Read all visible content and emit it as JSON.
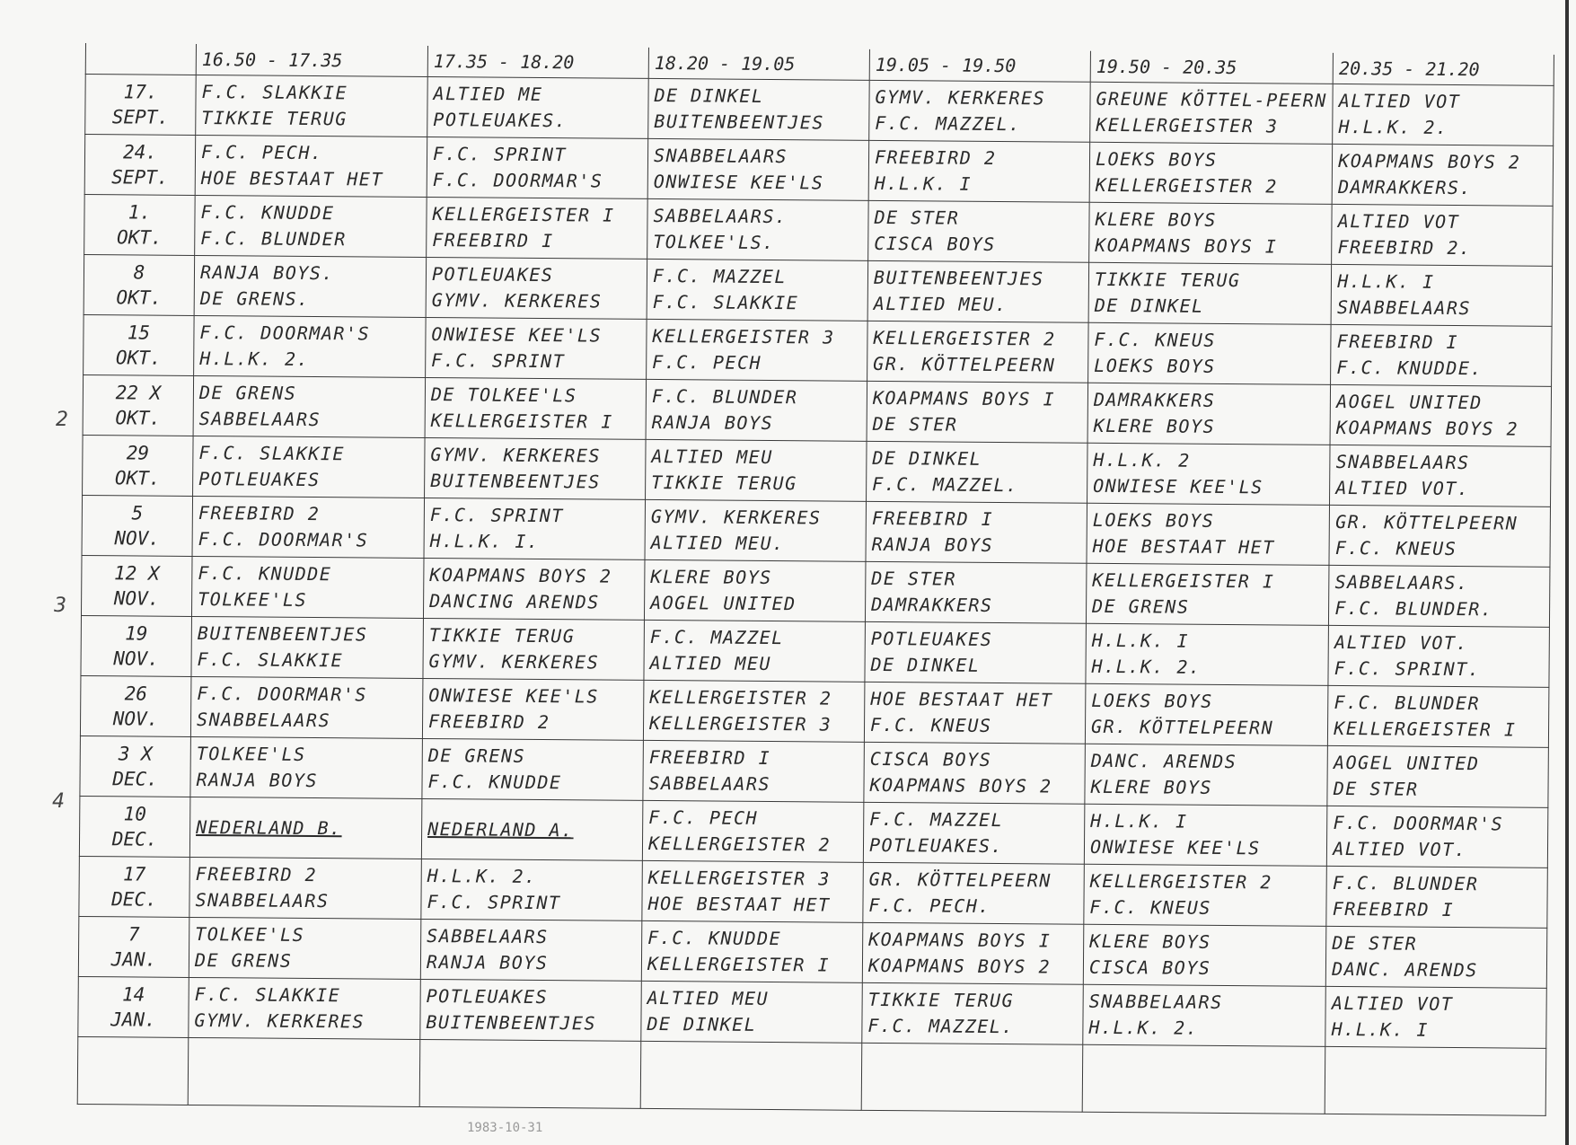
{
  "headers": [
    "",
    "16.50 - 17.35",
    "17.35 - 18.20",
    "18.20 - 19.05",
    "19.05 - 19.50",
    "19.50 - 20.35",
    "20.35 - 21.20"
  ],
  "rows": [
    {
      "date": [
        "17.",
        "SEPT."
      ],
      "cells": [
        [
          "F.C. SLAKKIE",
          "TIKKIE TERUG"
        ],
        [
          "ALTIED ME",
          "POTLEUAKES."
        ],
        [
          "DE DINKEL",
          "BUITENBEENTJES"
        ],
        [
          "GYMV. KERKERES",
          "F.C. MAZZEL."
        ],
        [
          "GREUNE KÖTTEL-PEERN",
          "KELLERGEISTER 3"
        ],
        [
          "ALTIED VOT",
          "H.L.K. 2."
        ]
      ]
    },
    {
      "date": [
        "24.",
        "SEPT."
      ],
      "cells": [
        [
          "F.C. PECH.",
          "HOE BESTAAT HET"
        ],
        [
          "F.C. SPRINT",
          "F.C. DOORMAR'S"
        ],
        [
          "SNABBELAARS",
          "ONWIESE KEE'LS"
        ],
        [
          "FREEBIRD 2",
          "H.L.K. I"
        ],
        [
          "LOEKS BOYS",
          "KELLERGEISTER 2"
        ],
        [
          "KOAPMANS BOYS 2",
          "DAMRAKKERS."
        ]
      ]
    },
    {
      "date": [
        "1.",
        "OKT."
      ],
      "cells": [
        [
          "F.C. KNUDDE",
          "F.C. BLUNDER"
        ],
        [
          "KELLERGEISTER I",
          "FREEBIRD I"
        ],
        [
          "SABBELAARS.",
          "TOLKEE'LS."
        ],
        [
          "DE STER",
          "CISCA BOYS"
        ],
        [
          "KLERE BOYS",
          "KOAPMANS BOYS I"
        ],
        [
          "ALTIED VOT",
          "FREEBIRD 2."
        ]
      ]
    },
    {
      "date": [
        "8",
        "OKT."
      ],
      "cells": [
        [
          "RANJA BOYS.",
          "DE GRENS."
        ],
        [
          "POTLEUAKES",
          "GYMV. KERKERES"
        ],
        [
          "F.C. MAZZEL",
          "F.C. SLAKKIE"
        ],
        [
          "BUITENBEENTJES",
          "ALTIED MEU."
        ],
        [
          "TIKKIE TERUG",
          "DE DINKEL"
        ],
        [
          "H.L.K. I",
          "SNABBELAARS"
        ]
      ]
    },
    {
      "date": [
        "15",
        "OKT."
      ],
      "cells": [
        [
          "F.C. DOORMAR'S",
          "H.L.K. 2."
        ],
        [
          "ONWIESE KEE'LS",
          "F.C. SPRINT"
        ],
        [
          "KELLERGEISTER 3",
          "F.C. PECH"
        ],
        [
          "KELLERGEISTER 2",
          "GR. KÖTTELPEERN"
        ],
        [
          "F.C. KNEUS",
          "LOEKS BOYS"
        ],
        [
          "FREEBIRD I",
          "F.C. KNUDDE."
        ]
      ]
    },
    {
      "date": [
        "22 X",
        "OKT."
      ],
      "cells": [
        [
          "DE GRENS",
          "SABBELAARS"
        ],
        [
          "DE TOLKEE'LS",
          "KELLERGEISTER I"
        ],
        [
          "F.C. BLUNDER",
          "RANJA BOYS"
        ],
        [
          "KOAPMANS BOYS I",
          "DE STER"
        ],
        [
          "DAMRAKKERS",
          "KLERE BOYS"
        ],
        [
          "AOGEL UNITED",
          "KOAPMANS BOYS 2"
        ]
      ]
    },
    {
      "date": [
        "29",
        "OKT."
      ],
      "cells": [
        [
          "F.C. SLAKKIE",
          "POTLEUAKES"
        ],
        [
          "GYMV. KERKERES",
          "BUITENBEENTJES"
        ],
        [
          "ALTIED MEU",
          "TIKKIE TERUG"
        ],
        [
          "DE DINKEL",
          "F.C. MAZZEL."
        ],
        [
          "H.L.K. 2",
          "ONWIESE KEE'LS"
        ],
        [
          "SNABBELAARS",
          "ALTIED VOT."
        ]
      ]
    },
    {
      "date": [
        "5",
        "NOV."
      ],
      "cells": [
        [
          "FREEBIRD 2",
          "F.C. DOORMAR'S"
        ],
        [
          "F.C. SPRINT",
          "H.L.K. I."
        ],
        [
          "GYMV. KERKERES",
          "ALTIED MEU."
        ],
        [
          "FREEBIRD I",
          "RANJA BOYS"
        ],
        [
          "LOEKS BOYS",
          "HOE BESTAAT HET"
        ],
        [
          "GR. KÖTTELPEERN",
          "F.C. KNEUS"
        ]
      ]
    },
    {
      "date": [
        "12 X",
        "NOV."
      ],
      "cells": [
        [
          "F.C. KNUDDE",
          "TOLKEE'LS"
        ],
        [
          "KOAPMANS BOYS 2",
          "DANCING ARENDS"
        ],
        [
          "KLERE BOYS",
          "AOGEL UNITED"
        ],
        [
          "DE STER",
          "DAMRAKKERS"
        ],
        [
          "KELLERGEISTER I",
          "DE GRENS"
        ],
        [
          "SABBELAARS.",
          "F.C. BLUNDER."
        ]
      ]
    },
    {
      "date": [
        "19",
        "NOV."
      ],
      "cells": [
        [
          "BUITENBEENTJES",
          "F.C. SLAKKIE"
        ],
        [
          "TIKKIE TERUG",
          "GYMV. KERKERES"
        ],
        [
          "F.C. MAZZEL",
          "ALTIED MEU"
        ],
        [
          "POTLEUAKES",
          "DE DINKEL"
        ],
        [
          "H.L.K. I",
          "H.L.K. 2."
        ],
        [
          "ALTIED VOT.",
          "F.C. SPRINT."
        ]
      ]
    },
    {
      "date": [
        "26",
        "NOV."
      ],
      "cells": [
        [
          "F.C. DOORMAR'S",
          "SNABBELAARS"
        ],
        [
          "ONWIESE KEE'LS",
          "FREEBIRD 2"
        ],
        [
          "KELLERGEISTER 2",
          "KELLERGEISTER 3"
        ],
        [
          "HOE BESTAAT HET",
          "F.C. KNEUS"
        ],
        [
          "LOEKS BOYS",
          "GR. KÖTTELPEERN"
        ],
        [
          "F.C. BLUNDER",
          "KELLERGEISTER I"
        ]
      ]
    },
    {
      "date": [
        "3 X",
        "DEC."
      ],
      "cells": [
        [
          "TOLKEE'LS",
          "RANJA BOYS"
        ],
        [
          "DE GRENS",
          "F.C. KNUDDE"
        ],
        [
          "FREEBIRD I",
          "SABBELAARS"
        ],
        [
          "CISCA BOYS",
          "KOAPMANS BOYS 2"
        ],
        [
          "DANC. ARENDS",
          "KLERE BOYS"
        ],
        [
          "AOGEL UNITED",
          "DE STER"
        ]
      ]
    },
    {
      "date": [
        "10",
        "DEC."
      ],
      "cells": [
        [
          "NEDERLAND B.",
          ""
        ],
        [
          "NEDERLAND A.",
          ""
        ],
        [
          "F.C. PECH",
          "KELLERGEISTER 2"
        ],
        [
          "F.C. MAZZEL",
          "POTLEUAKES."
        ],
        [
          "H.L.K. I",
          "ONWIESE KEE'LS"
        ],
        [
          "F.C. DOORMAR'S",
          "ALTIED VOT."
        ]
      ]
    },
    {
      "date": [
        "17",
        "DEC."
      ],
      "cells": [
        [
          "FREEBIRD 2",
          "SNABBELAARS"
        ],
        [
          "H.L.K. 2.",
          "F.C. SPRINT"
        ],
        [
          "KELLERGEISTER 3",
          "HOE BESTAAT HET"
        ],
        [
          "GR. KÖTTELPEERN",
          "F.C. PECH."
        ],
        [
          "KELLERGEISTER 2",
          "F.C. KNEUS"
        ],
        [
          "F.C. BLUNDER",
          "FREEBIRD I"
        ]
      ]
    },
    {
      "date": [
        "7",
        "JAN."
      ],
      "cells": [
        [
          "TOLKEE'LS",
          "DE GRENS"
        ],
        [
          "SABBELAARS",
          "RANJA BOYS"
        ],
        [
          "F.C. KNUDDE",
          "KELLERGEISTER I"
        ],
        [
          "KOAPMANS BOYS I",
          "KOAPMANS BOYS 2"
        ],
        [
          "KLERE BOYS",
          "CISCA BOYS"
        ],
        [
          "DE STER",
          "DANC. ARENDS"
        ]
      ]
    },
    {
      "date": [
        "14",
        "JAN."
      ],
      "cells": [
        [
          "F.C. SLAKKIE",
          "GYMV. KERKERES"
        ],
        [
          "POTLEUAKES",
          "BUITENBEENTJES"
        ],
        [
          "ALTIED MEU",
          "DE DINKEL"
        ],
        [
          "TIKKIE TERUG",
          "F.C. MAZZEL."
        ],
        [
          "SNABBELAARS",
          "H.L.K. 2."
        ],
        [
          "ALTIED VOT",
          "H.L.K. I"
        ]
      ]
    }
  ],
  "margin_marks": [
    "2",
    "3",
    "4"
  ],
  "stamp": "1983-10-31"
}
